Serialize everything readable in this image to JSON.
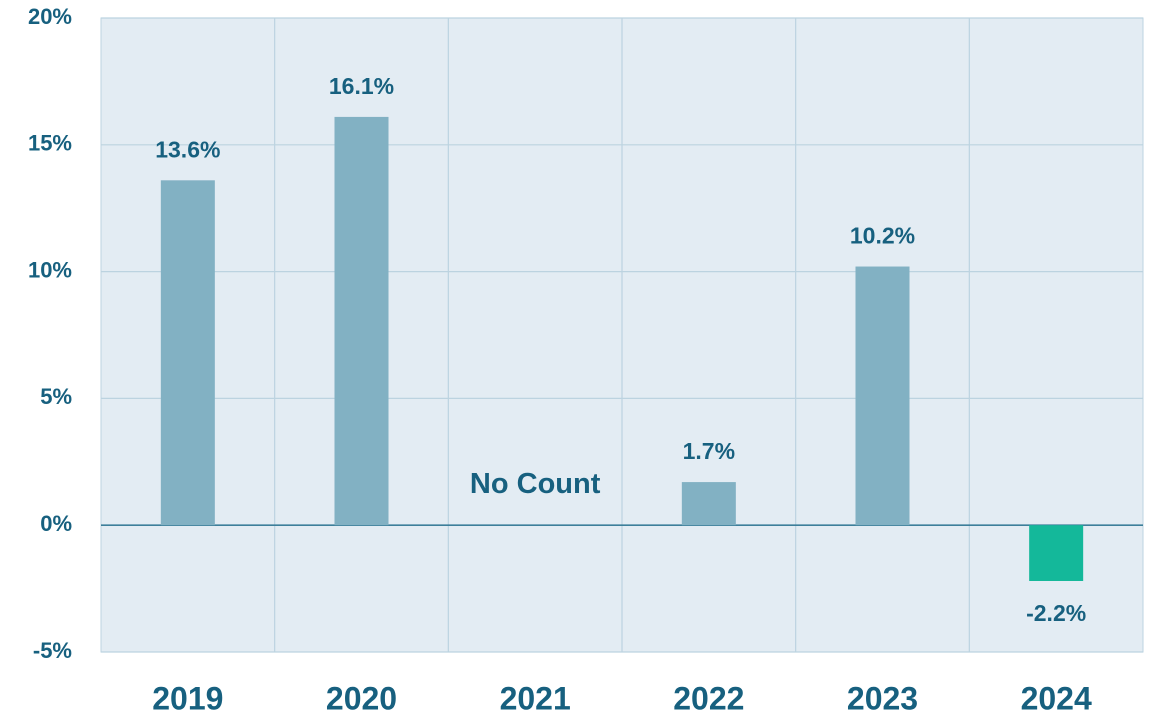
{
  "chart_data": {
    "type": "bar",
    "categories": [
      "2019",
      "2020",
      "2021",
      "2022",
      "2023",
      "2024"
    ],
    "values": [
      13.6,
      16.1,
      null,
      1.7,
      10.2,
      -2.2
    ],
    "value_labels": [
      "13.6%",
      "16.1%",
      null,
      "1.7%",
      "10.2%",
      "-2.2%"
    ],
    "annotations": [
      "No Count"
    ],
    "color": "#82b1c3",
    "negative_color": "#14b89a",
    "ylim": [
      -5,
      20
    ],
    "yticks": [
      {
        "value": -5,
        "label": "-5%"
      },
      {
        "value": 0,
        "label": "0%"
      },
      {
        "value": 5,
        "label": "5%"
      },
      {
        "value": 10,
        "label": "10%"
      },
      {
        "value": 15,
        "label": "15%"
      },
      {
        "value": 20,
        "label": "20%"
      }
    ],
    "grid": true
  }
}
